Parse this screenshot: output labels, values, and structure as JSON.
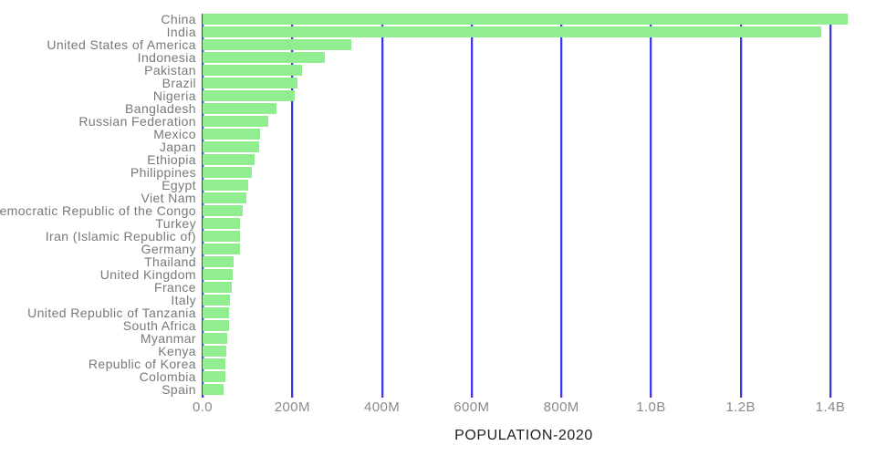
{
  "title": "POPULATION-2020",
  "colors": {
    "bar": "#90ee90",
    "gridline": "#3d38e0",
    "category_label": "#787878",
    "tick_label": "#8a8a8a",
    "title": "#1f1f1f",
    "background": "#ffffff"
  },
  "chart_data": {
    "type": "bar",
    "orientation": "horizontal",
    "title": "POPULATION-2020",
    "xlabel": "POPULATION-2020",
    "ylabel": "",
    "grid": true,
    "legend": false,
    "xlim_millions": [
      0,
      1400
    ],
    "x_ticks": [
      {
        "label": "0.0",
        "value_millions": 0
      },
      {
        "label": "200M",
        "value_millions": 200
      },
      {
        "label": "400M",
        "value_millions": 400
      },
      {
        "label": "600M",
        "value_millions": 600
      },
      {
        "label": "800M",
        "value_millions": 800
      },
      {
        "label": "1.0B",
        "value_millions": 1000
      },
      {
        "label": "1.2B",
        "value_millions": 1200
      },
      {
        "label": "1.4B",
        "value_millions": 1400
      }
    ],
    "categories": [
      "China",
      "India",
      "United States of America",
      "Indonesia",
      "Pakistan",
      "Brazil",
      "Nigeria",
      "Bangladesh",
      "Russian Federation",
      "Mexico",
      "Japan",
      "Ethiopia",
      "Philippines",
      "Egypt",
      "Viet Nam",
      "Democratic Republic of the Congo",
      "Turkey",
      "Iran (Islamic Republic of)",
      "Germany",
      "Thailand",
      "United Kingdom",
      "France",
      "Italy",
      "United Republic of Tanzania",
      "South Africa",
      "Myanmar",
      "Kenya",
      "Republic of Korea",
      "Colombia",
      "Spain"
    ],
    "values_millions": [
      1439.3,
      1380.0,
      331.0,
      273.5,
      220.9,
      212.6,
      206.1,
      164.7,
      145.9,
      128.9,
      126.5,
      115.0,
      109.6,
      102.3,
      97.3,
      89.6,
      84.3,
      84.0,
      83.8,
      69.8,
      67.9,
      65.3,
      60.5,
      59.7,
      59.3,
      54.4,
      53.8,
      51.3,
      50.9,
      46.8
    ]
  }
}
